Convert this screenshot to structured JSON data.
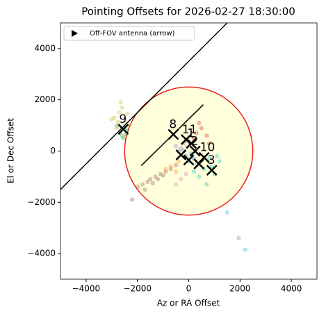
{
  "chart_data": {
    "type": "scatter",
    "title": "Pointing Offsets for 2026-02-27 18:30:00",
    "x_label": "Az or RA Offset",
    "y_label": "El or Dec Offset",
    "xlim": [
      -5000,
      5000
    ],
    "ylim": [
      -5000,
      5000
    ],
    "xticks": [
      {
        "value": -4000,
        "label": "−4000"
      },
      {
        "value": -2000,
        "label": "−2000"
      },
      0,
      2000,
      4000
    ],
    "yticks": [
      {
        "value": -4000,
        "label": "−4000"
      },
      {
        "value": -2000,
        "label": "−2000"
      },
      0,
      2000,
      4000
    ],
    "circle": {
      "center": [
        0,
        0
      ],
      "radius": 2500,
      "color": "#ee1c1c",
      "fill": "#ffffdc"
    },
    "lines": [
      {
        "x": [
          -5000,
          1500
        ],
        "y": [
          -1500,
          5000
        ],
        "color": "#000000"
      },
      {
        "x": [
          -1850,
          570
        ],
        "y": [
          -570,
          1810
        ],
        "color": "#000000"
      }
    ],
    "series": [
      {
        "color": "#bcbd22",
        "x": [
          -2900,
          -2700,
          -2500,
          -2800,
          -2600,
          -2300,
          -3000,
          -2400,
          -2650,
          -2750
        ],
        "values": [
          1300,
          1500,
          1100,
          900,
          1700,
          1000,
          1250,
          1450,
          1900,
          1150
        ]
      },
      {
        "color": "#2ca02c",
        "x": [
          -2700,
          -2500,
          -2600,
          -2400,
          -2800,
          -2550,
          -2450
        ],
        "values": [
          700,
          900,
          600,
          800,
          1000,
          500,
          650
        ]
      },
      {
        "color": "#8c564b",
        "x": [
          -2000,
          -1800,
          -1600,
          -1500,
          -1300,
          -1100,
          -900,
          -700,
          -500,
          -1700,
          -1200,
          -2200,
          -1400,
          -1000
        ],
        "values": [
          -1400,
          -1300,
          -1200,
          -1100,
          -1000,
          -900,
          -800,
          -700,
          -550,
          -1500,
          -1100,
          -1900,
          -1250,
          -950
        ]
      },
      {
        "color": "#17becf",
        "x": [
          300,
          600,
          800,
          1000,
          1200,
          400,
          700,
          900,
          1500,
          200,
          1100,
          2200
        ],
        "values": [
          -500,
          -700,
          -300,
          -900,
          -400,
          -1000,
          -1300,
          -600,
          -2400,
          -800,
          -200,
          -3850
        ]
      },
      {
        "color": "#d62728",
        "x": [
          300,
          500,
          700,
          400,
          800,
          200
        ],
        "values": [
          700,
          900,
          600,
          1100,
          300,
          500
        ]
      },
      {
        "color": "#9467bd",
        "x": [
          -500,
          -300,
          -200,
          -400,
          -100
        ],
        "values": [
          200,
          100,
          300,
          0,
          400
        ]
      },
      {
        "color": "#ff7f0e",
        "x": [
          -700,
          -500,
          -400,
          -900
        ],
        "values": [
          -600,
          -800,
          -400,
          -700
        ]
      },
      {
        "color": "#1f77b4",
        "x": [
          -100,
          100,
          0,
          200,
          -200
        ],
        "values": [
          -200,
          -100,
          -400,
          -300,
          0
        ]
      },
      {
        "color": "#e377c2",
        "x": [
          -300,
          -100,
          -500
        ],
        "values": [
          -1100,
          -900,
          -1300
        ]
      },
      {
        "color": "#7f7f7f",
        "x": [
          1950
        ],
        "values": [
          -3400
        ]
      }
    ],
    "alpha": 0.3,
    "markers": {
      "color": "#000000",
      "x": [
        -2550,
        -600,
        -100,
        100,
        250,
        600,
        900,
        0,
        -300,
        400
      ],
      "y": [
        850,
        650,
        450,
        300,
        0,
        -250,
        -750,
        -350,
        -150,
        -500
      ],
      "labels": [
        "9",
        "8",
        "11",
        "1",
        "2",
        "10",
        "3",
        null,
        null,
        null
      ]
    },
    "legend": {
      "label": "Off-FOV antenna (arrow)",
      "loc": "upper left"
    }
  }
}
